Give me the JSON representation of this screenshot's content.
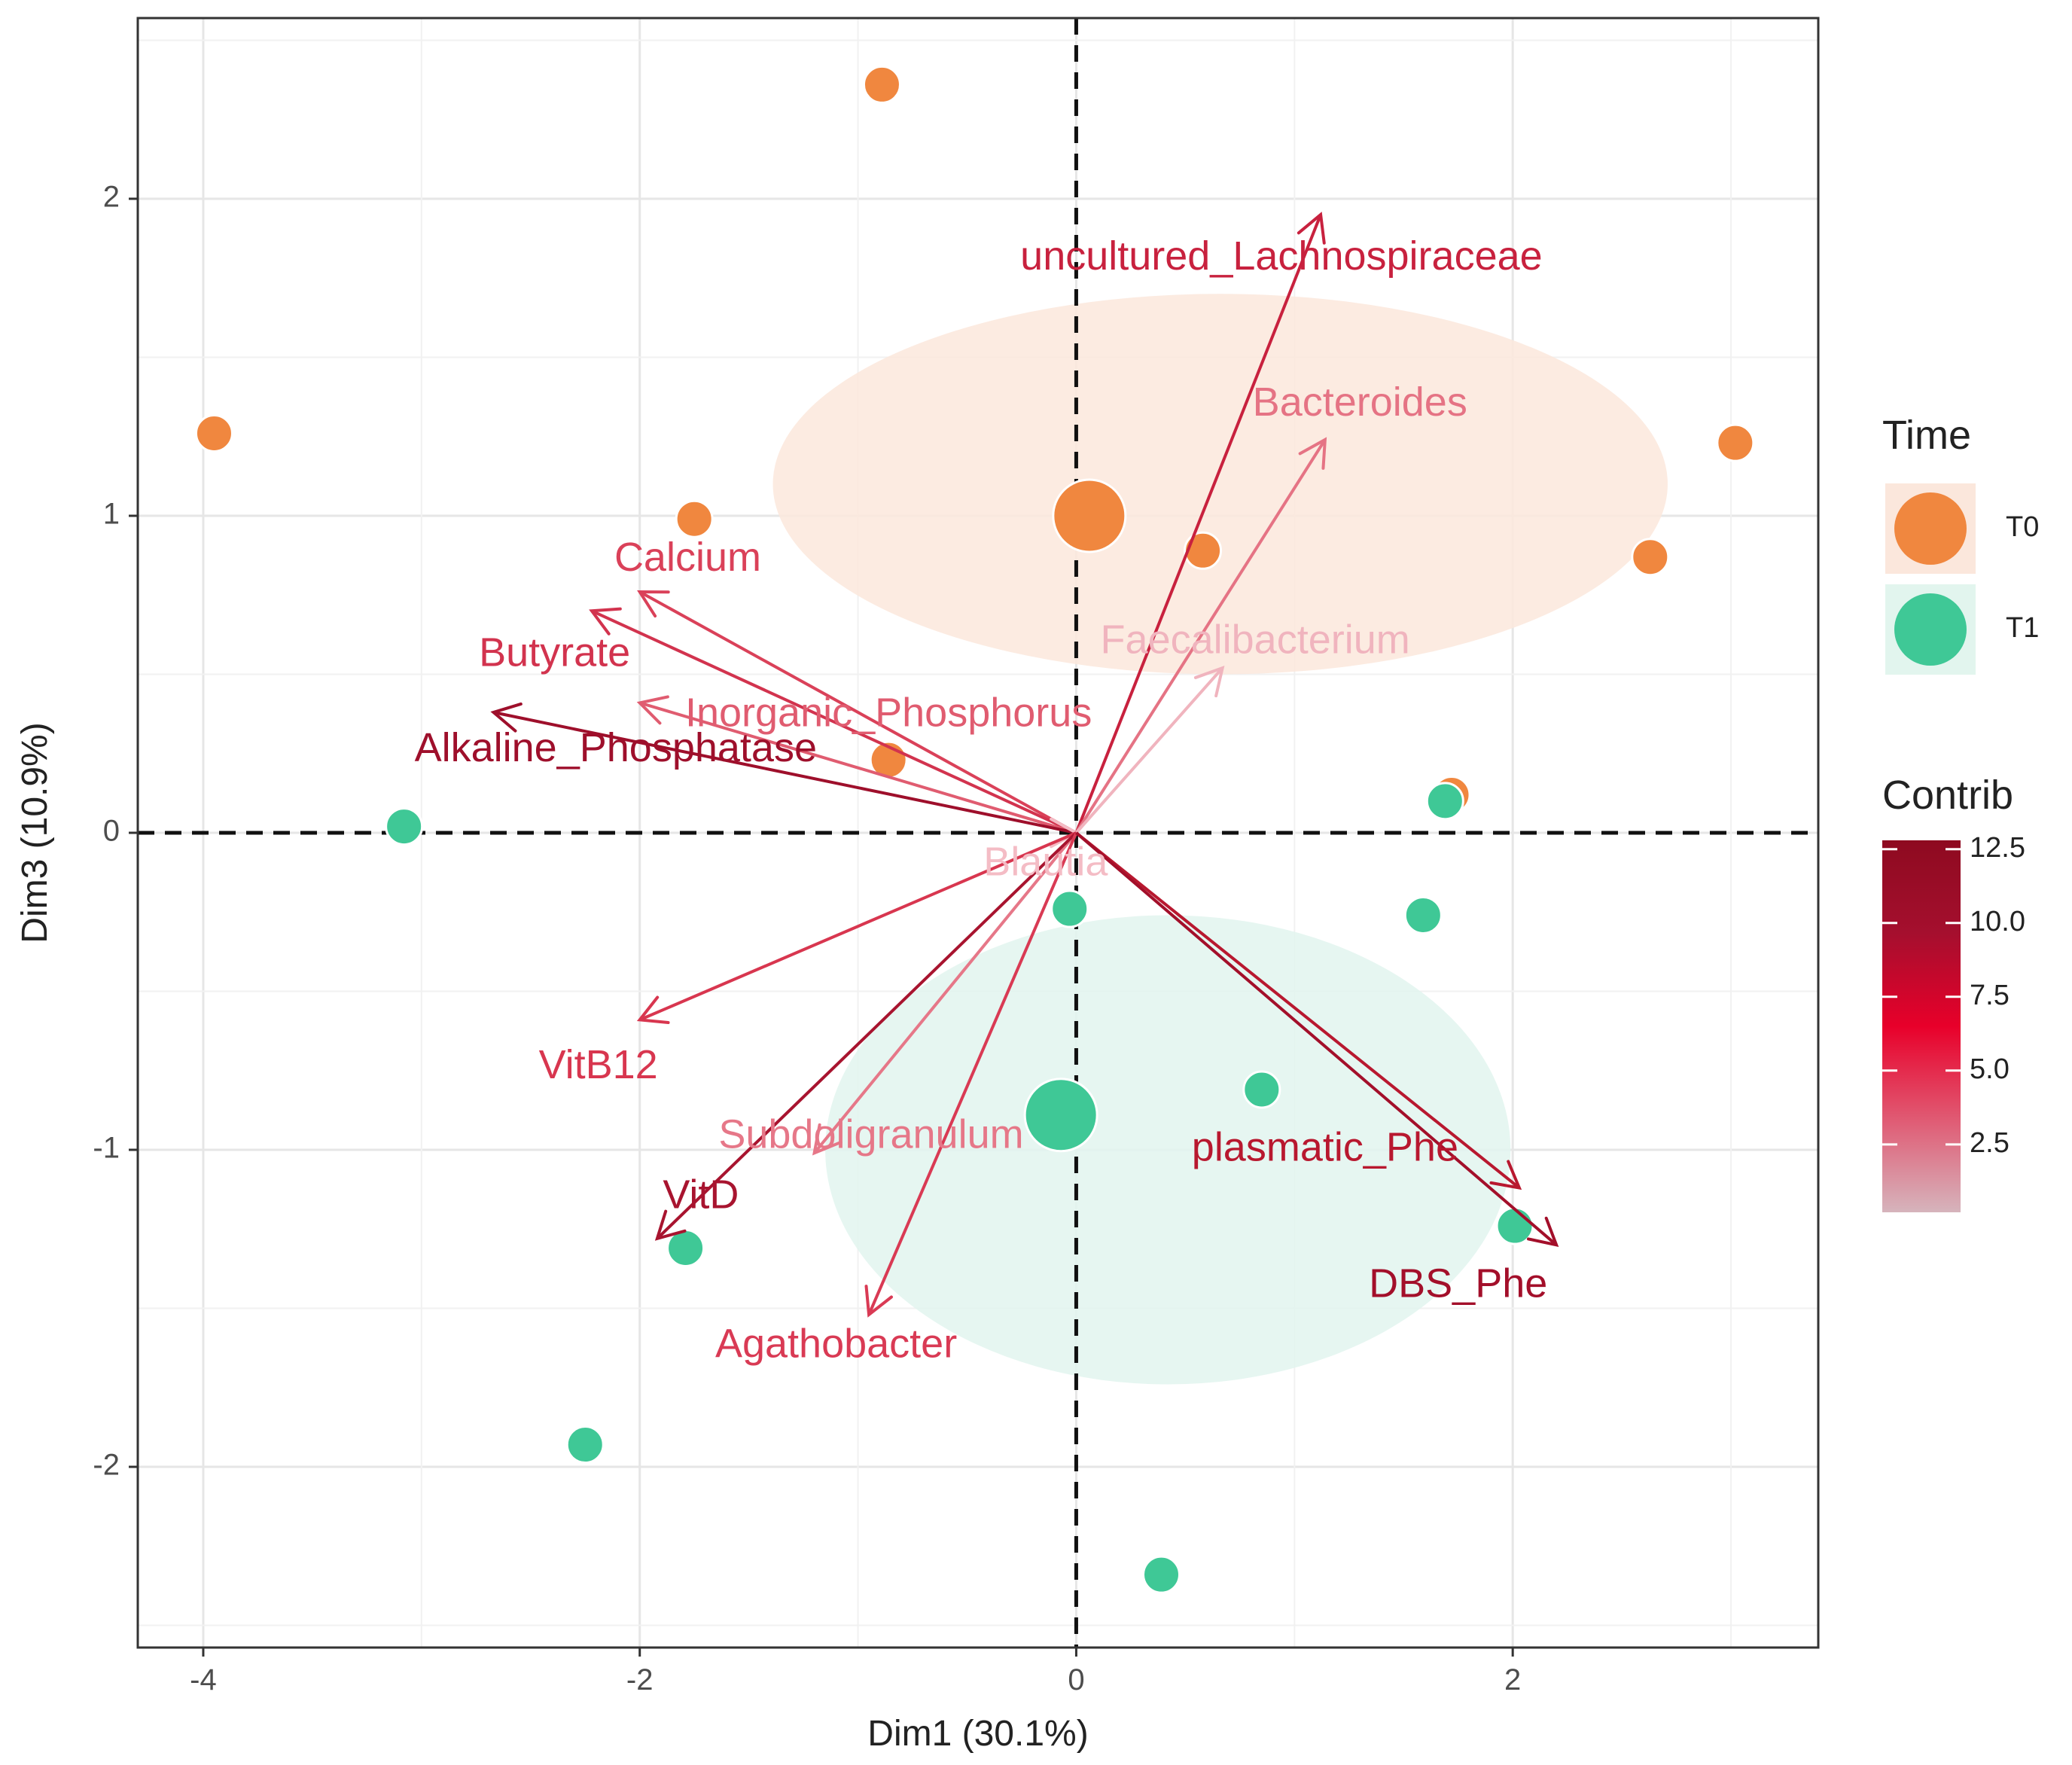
{
  "chart_data": {
    "type": "scatter",
    "subtype": "pca-biplot",
    "title": "",
    "xlabel": "Dim1 (30.1%)",
    "ylabel": "Dim3 (10.9%)",
    "xlim": [
      -4.3,
      3.4
    ],
    "ylim": [
      -2.57,
      2.57
    ],
    "x_ticks": [
      -4,
      -2,
      0,
      2
    ],
    "y_ticks": [
      2,
      1,
      0,
      -1,
      -2
    ],
    "x_tick_labels": [
      "-4",
      "-2",
      "0",
      "2"
    ],
    "y_tick_labels": [
      "2",
      "1",
      "0",
      "-1",
      "-2"
    ],
    "grid": true,
    "groups": [
      {
        "name": "T0",
        "color": "#F0873F",
        "ellipse_fill": "#FBE7DC",
        "centroid": [
          0.06,
          1.0
        ],
        "ellipse": {
          "center": [
            0.66,
            1.1
          ],
          "rx": 2.05,
          "ry": 0.6
        },
        "points": [
          [
            -0.89,
            2.36
          ],
          [
            -3.95,
            1.26
          ],
          [
            -1.75,
            0.99
          ],
          [
            0.58,
            0.89
          ],
          [
            -0.86,
            0.23
          ],
          [
            1.72,
            0.12
          ],
          [
            2.63,
            0.87
          ],
          [
            3.02,
            1.23
          ]
        ]
      },
      {
        "name": "T1",
        "color": "#3FC896",
        "ellipse_fill": "#E2F5EE",
        "centroid": [
          -0.07,
          -0.89
        ],
        "ellipse": {
          "center": [
            0.42,
            -1.0
          ],
          "rx": 1.57,
          "ry": 0.74
        },
        "points": [
          [
            -3.08,
            0.02
          ],
          [
            -0.03,
            -0.24
          ],
          [
            1.59,
            -0.26
          ],
          [
            1.69,
            0.1
          ],
          [
            0.85,
            -0.81
          ],
          [
            2.01,
            -1.24
          ],
          [
            -1.79,
            -1.31
          ],
          [
            -2.25,
            -1.93
          ],
          [
            0.39,
            -2.34
          ]
        ]
      }
    ],
    "variables": [
      {
        "name": "uncultured_Lachnospiraceae",
        "x": 1.12,
        "y": 1.95,
        "contrib": 7.5,
        "color": "#C8213E",
        "label_x": 0.94,
        "label_y": 1.81
      },
      {
        "name": "Bacteroides",
        "x": 1.14,
        "y": 1.24,
        "contrib": 2.2,
        "color": "#E57384",
        "label_x": 1.3,
        "label_y": 1.35
      },
      {
        "name": "Faecalibacterium",
        "x": 0.67,
        "y": 0.52,
        "contrib": 0.6,
        "color": "#F0B4BE",
        "label_x": 0.82,
        "label_y": 0.6
      },
      {
        "name": "Calcium",
        "x": -2.0,
        "y": 0.76,
        "contrib": 4.0,
        "color": "#DA4159",
        "label_x": -1.78,
        "label_y": 0.86
      },
      {
        "name": "Butyrate",
        "x": -2.22,
        "y": 0.7,
        "contrib": 5.5,
        "color": "#D2334E",
        "label_x": -2.39,
        "label_y": 0.56
      },
      {
        "name": "Inorganic_Phosphorus",
        "x": -2.0,
        "y": 0.41,
        "contrib": 2.8,
        "color": "#E05C70",
        "label_x": -0.86,
        "label_y": 0.37
      },
      {
        "name": "Alkaline_Phosphatase",
        "x": -2.67,
        "y": 0.38,
        "contrib": 11.5,
        "color": "#9E0F2B",
        "label_x": -2.11,
        "label_y": 0.26
      },
      {
        "name": "Blautia",
        "x": 0.0,
        "y": 0.0,
        "contrib": 0.2,
        "color": "#F4BCC5",
        "label_x": -0.14,
        "label_y": -0.1
      },
      {
        "name": "VitB12",
        "x": -2.0,
        "y": -0.59,
        "contrib": 4.5,
        "color": "#D8364F",
        "label_x": -2.19,
        "label_y": -0.74
      },
      {
        "name": "Subdoligranulum",
        "x": -1.2,
        "y": -1.01,
        "contrib": 2.0,
        "color": "#E67788",
        "label_x": -0.94,
        "label_y": -0.96
      },
      {
        "name": "VitD",
        "x": -1.92,
        "y": -1.28,
        "contrib": 10.0,
        "color": "#A8142F",
        "label_x": -1.72,
        "label_y": -1.15
      },
      {
        "name": "Agathobacter",
        "x": -0.95,
        "y": -1.52,
        "contrib": 4.3,
        "color": "#D93A54",
        "label_x": -1.1,
        "label_y": -1.62
      },
      {
        "name": "plasmatic_Phe",
        "x": 2.03,
        "y": -1.12,
        "contrib": 9.0,
        "color": "#B8182F",
        "label_x": 1.14,
        "label_y": -1.0
      },
      {
        "name": "DBS_Phe",
        "x": 2.2,
        "y": -1.3,
        "contrib": 11.0,
        "color": "#A30F2A",
        "label_x": 1.75,
        "label_y": -1.43
      }
    ],
    "legend_time": {
      "title": "Time",
      "entries": [
        "T0",
        "T1"
      ],
      "placement": "right"
    },
    "legend_contrib": {
      "title": "Contrib",
      "range": [
        0.2,
        12.8
      ],
      "ticks": [
        12.5,
        10.0,
        7.5,
        5.0,
        2.5
      ],
      "tick_labels": [
        "12.5",
        "10.0",
        "7.5",
        "5.0",
        "2.5"
      ],
      "colors": [
        "#D6B4BC",
        "#E05A73",
        "#E8002A",
        "#A50F2E",
        "#8E0A20"
      ],
      "placement": "right"
    }
  }
}
